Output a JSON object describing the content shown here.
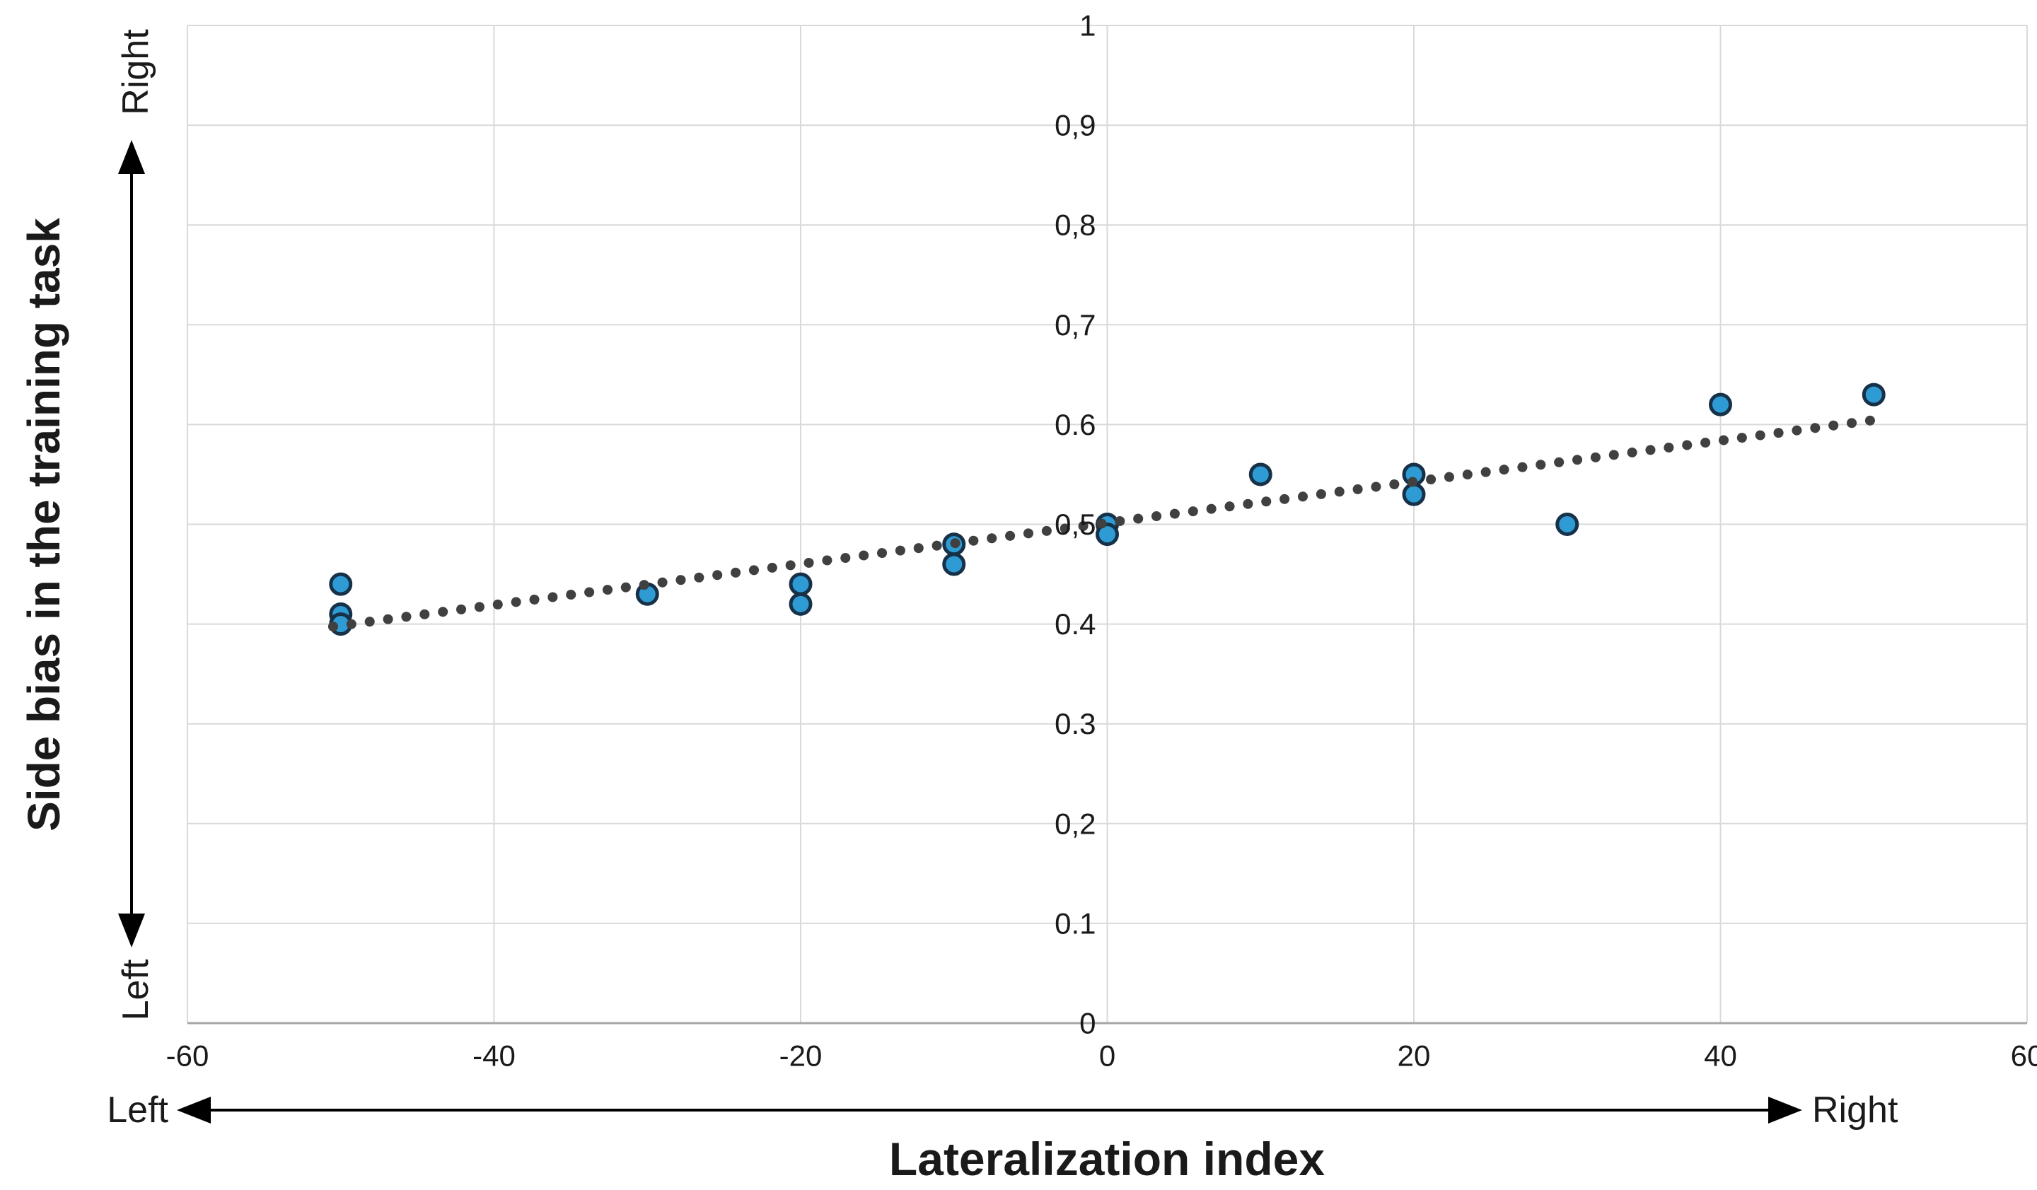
{
  "labels": {
    "y_axis_title": "Side bias in the training task",
    "x_axis_title": "Lateralization index",
    "y_right": "Right",
    "y_left": "Left",
    "x_left": "Left",
    "x_right": "Right"
  },
  "chart_data": {
    "type": "scatter",
    "title": "",
    "xlabel": "Lateralization index",
    "ylabel": "Side bias in the training task",
    "xlim": [
      -60,
      60
    ],
    "ylim": [
      0,
      1
    ],
    "grid": true,
    "legend": "none",
    "x_ticks": [
      {
        "v": -60,
        "label": "-60"
      },
      {
        "v": -40,
        "label": "-40"
      },
      {
        "v": -20,
        "label": "-20"
      },
      {
        "v": 0,
        "label": "0"
      },
      {
        "v": 20,
        "label": "20"
      },
      {
        "v": 40,
        "label": "40"
      },
      {
        "v": 60,
        "label": "60"
      }
    ],
    "y_ticks": [
      {
        "v": 1,
        "label": "1"
      },
      {
        "v": 0.9,
        "label": "0,9"
      },
      {
        "v": 0.8,
        "label": "0,8"
      },
      {
        "v": 0.7,
        "label": "0,7"
      },
      {
        "v": 0.6,
        "label": "0.6"
      },
      {
        "v": 0.5,
        "label": "0,5"
      },
      {
        "v": 0.4,
        "label": "0.4"
      },
      {
        "v": 0.3,
        "label": "0.3"
      },
      {
        "v": 0.2,
        "label": "0,2"
      },
      {
        "v": 0.1,
        "label": "0.1"
      },
      {
        "v": 0,
        "label": "0"
      }
    ],
    "points": [
      [
        -50,
        0.44
      ],
      [
        -50,
        0.41
      ],
      [
        -50,
        0.4
      ],
      [
        -30,
        0.43
      ],
      [
        -20,
        0.44
      ],
      [
        -20,
        0.42
      ],
      [
        -10,
        0.48
      ],
      [
        -10,
        0.46
      ],
      [
        0,
        0.5
      ],
      [
        0,
        0.49
      ],
      [
        10,
        0.55
      ],
      [
        20,
        0.55
      ],
      [
        20,
        0.53
      ],
      [
        30,
        0.5
      ],
      [
        40,
        0.62
      ],
      [
        50,
        0.63
      ]
    ],
    "trendline": {
      "style": "dotted",
      "x_start": -50.5,
      "y_start": 0.3975,
      "x_end": 50.5,
      "y_end": 0.6055
    },
    "marker": {
      "fill": "#2E9BD5",
      "stroke": "#173148",
      "radius": 14,
      "stroke_width": 5
    },
    "colors": {
      "gridline": "#D9D9D9",
      "axis_line": "#A6A6A6",
      "trendline": "#404040",
      "arrow": "#000000",
      "text": "#1a1a1a"
    }
  }
}
